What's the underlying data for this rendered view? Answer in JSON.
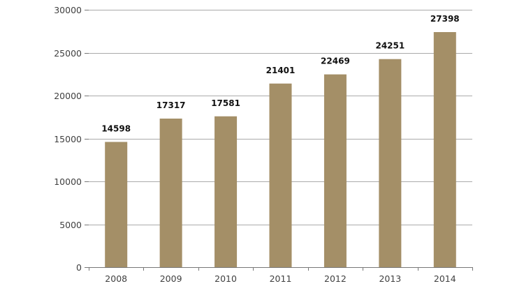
{
  "chart_data": {
    "type": "bar",
    "title": "",
    "xlabel": "",
    "ylabel": "",
    "categories": [
      "2008",
      "2009",
      "2010",
      "2011",
      "2012",
      "2013",
      "2014"
    ],
    "values": [
      14598,
      17317,
      17581,
      21401,
      22469,
      24251,
      27398
    ],
    "data_labels": [
      "14598",
      "17317",
      "17581",
      "21401",
      "22469",
      "24251",
      "27398"
    ],
    "ylim": [
      0,
      30000
    ],
    "yticks": [
      0,
      5000,
      10000,
      15000,
      20000,
      25000,
      30000
    ],
    "ytick_labels": [
      "0",
      "5000",
      "10000",
      "15000",
      "20000",
      "25000",
      "30000"
    ],
    "grid": true,
    "legend": "none",
    "colors": {
      "bar": "#a48f67",
      "grid": "#aaaaaa",
      "axis": "#777777"
    }
  }
}
